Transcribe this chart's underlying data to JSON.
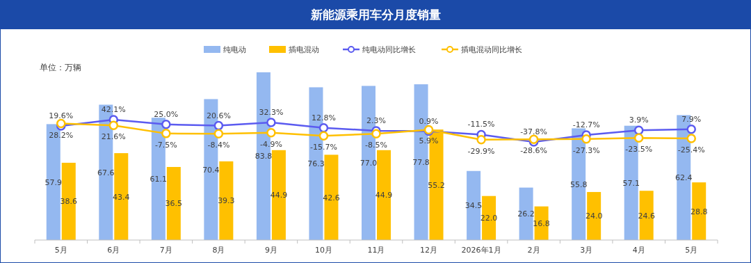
{
  "chart_data": {
    "type": "bar",
    "title": "新能源乘用车分月度销量",
    "annotations": [
      "单位：万辆"
    ],
    "categories": [
      "5月",
      "6月",
      "7月",
      "8月",
      "9月",
      "10月",
      "11月",
      "12月",
      "2026年1月",
      "2月",
      "3月",
      "4月",
      "5月"
    ],
    "series": [
      {
        "name": "纯电动",
        "color": "#94b8f0",
        "values": [
          57.9,
          67.6,
          61.1,
          70.4,
          83.8,
          76.3,
          77.0,
          77.8,
          34.5,
          26.2,
          55.8,
          57.1,
          62.4
        ],
        "value_labels": [
          "57.9",
          "67.6",
          "61.1",
          "70.4",
          "83.8",
          "76.3",
          "77.0",
          "77.8",
          "34.5",
          "26.2",
          "55.8",
          "57.1",
          "62.4"
        ]
      },
      {
        "name": "插电混动",
        "color": "#ffc000",
        "values": [
          38.6,
          43.4,
          36.5,
          39.3,
          44.9,
          42.6,
          44.9,
          55.2,
          22.0,
          16.8,
          24.0,
          24.6,
          28.8
        ],
        "value_labels": [
          "38.6",
          "43.4",
          "36.5",
          "39.3",
          "44.9",
          "42.6",
          "44.9",
          "55.2",
          "22.0",
          "16.8",
          "24.0",
          "24.6",
          "28.8"
        ]
      },
      {
        "name": "纯电动同比增长",
        "type": "line",
        "axis": "y2",
        "color": "#5b5bf0",
        "marker": "circle",
        "values": [
          19.6,
          42.1,
          25.0,
          20.6,
          32.3,
          12.8,
          2.3,
          0.9,
          -11.5,
          -37.8,
          -12.7,
          3.9,
          7.9
        ],
        "value_labels": [
          "19.6%",
          "42.1%",
          "25.0%",
          "20.6%",
          "32.3%",
          "12.8%",
          "2.3%",
          "0.9%",
          "-11.5%",
          "-37.8%",
          "-12.7%",
          "3.9%",
          "7.9%"
        ]
      },
      {
        "name": "插电混动同比增长",
        "type": "line",
        "axis": "y2",
        "color": "#ffc000",
        "marker": "circle",
        "values": [
          28.2,
          21.6,
          -7.5,
          -8.4,
          -4.9,
          -15.7,
          -8.5,
          5.9,
          -29.9,
          -28.6,
          -27.3,
          -23.5,
          -25.4
        ],
        "value_labels": [
          "28.2%",
          "21.6%",
          "-7.5%",
          "-8.4%",
          "-4.9%",
          "-15.7%",
          "-8.5%",
          "5.9%",
          "-29.9%",
          "-28.6%",
          "-27.3%",
          "-23.5%",
          "-25.4%"
        ]
      }
    ],
    "legend": "top",
    "tick_labels": "x"
  }
}
